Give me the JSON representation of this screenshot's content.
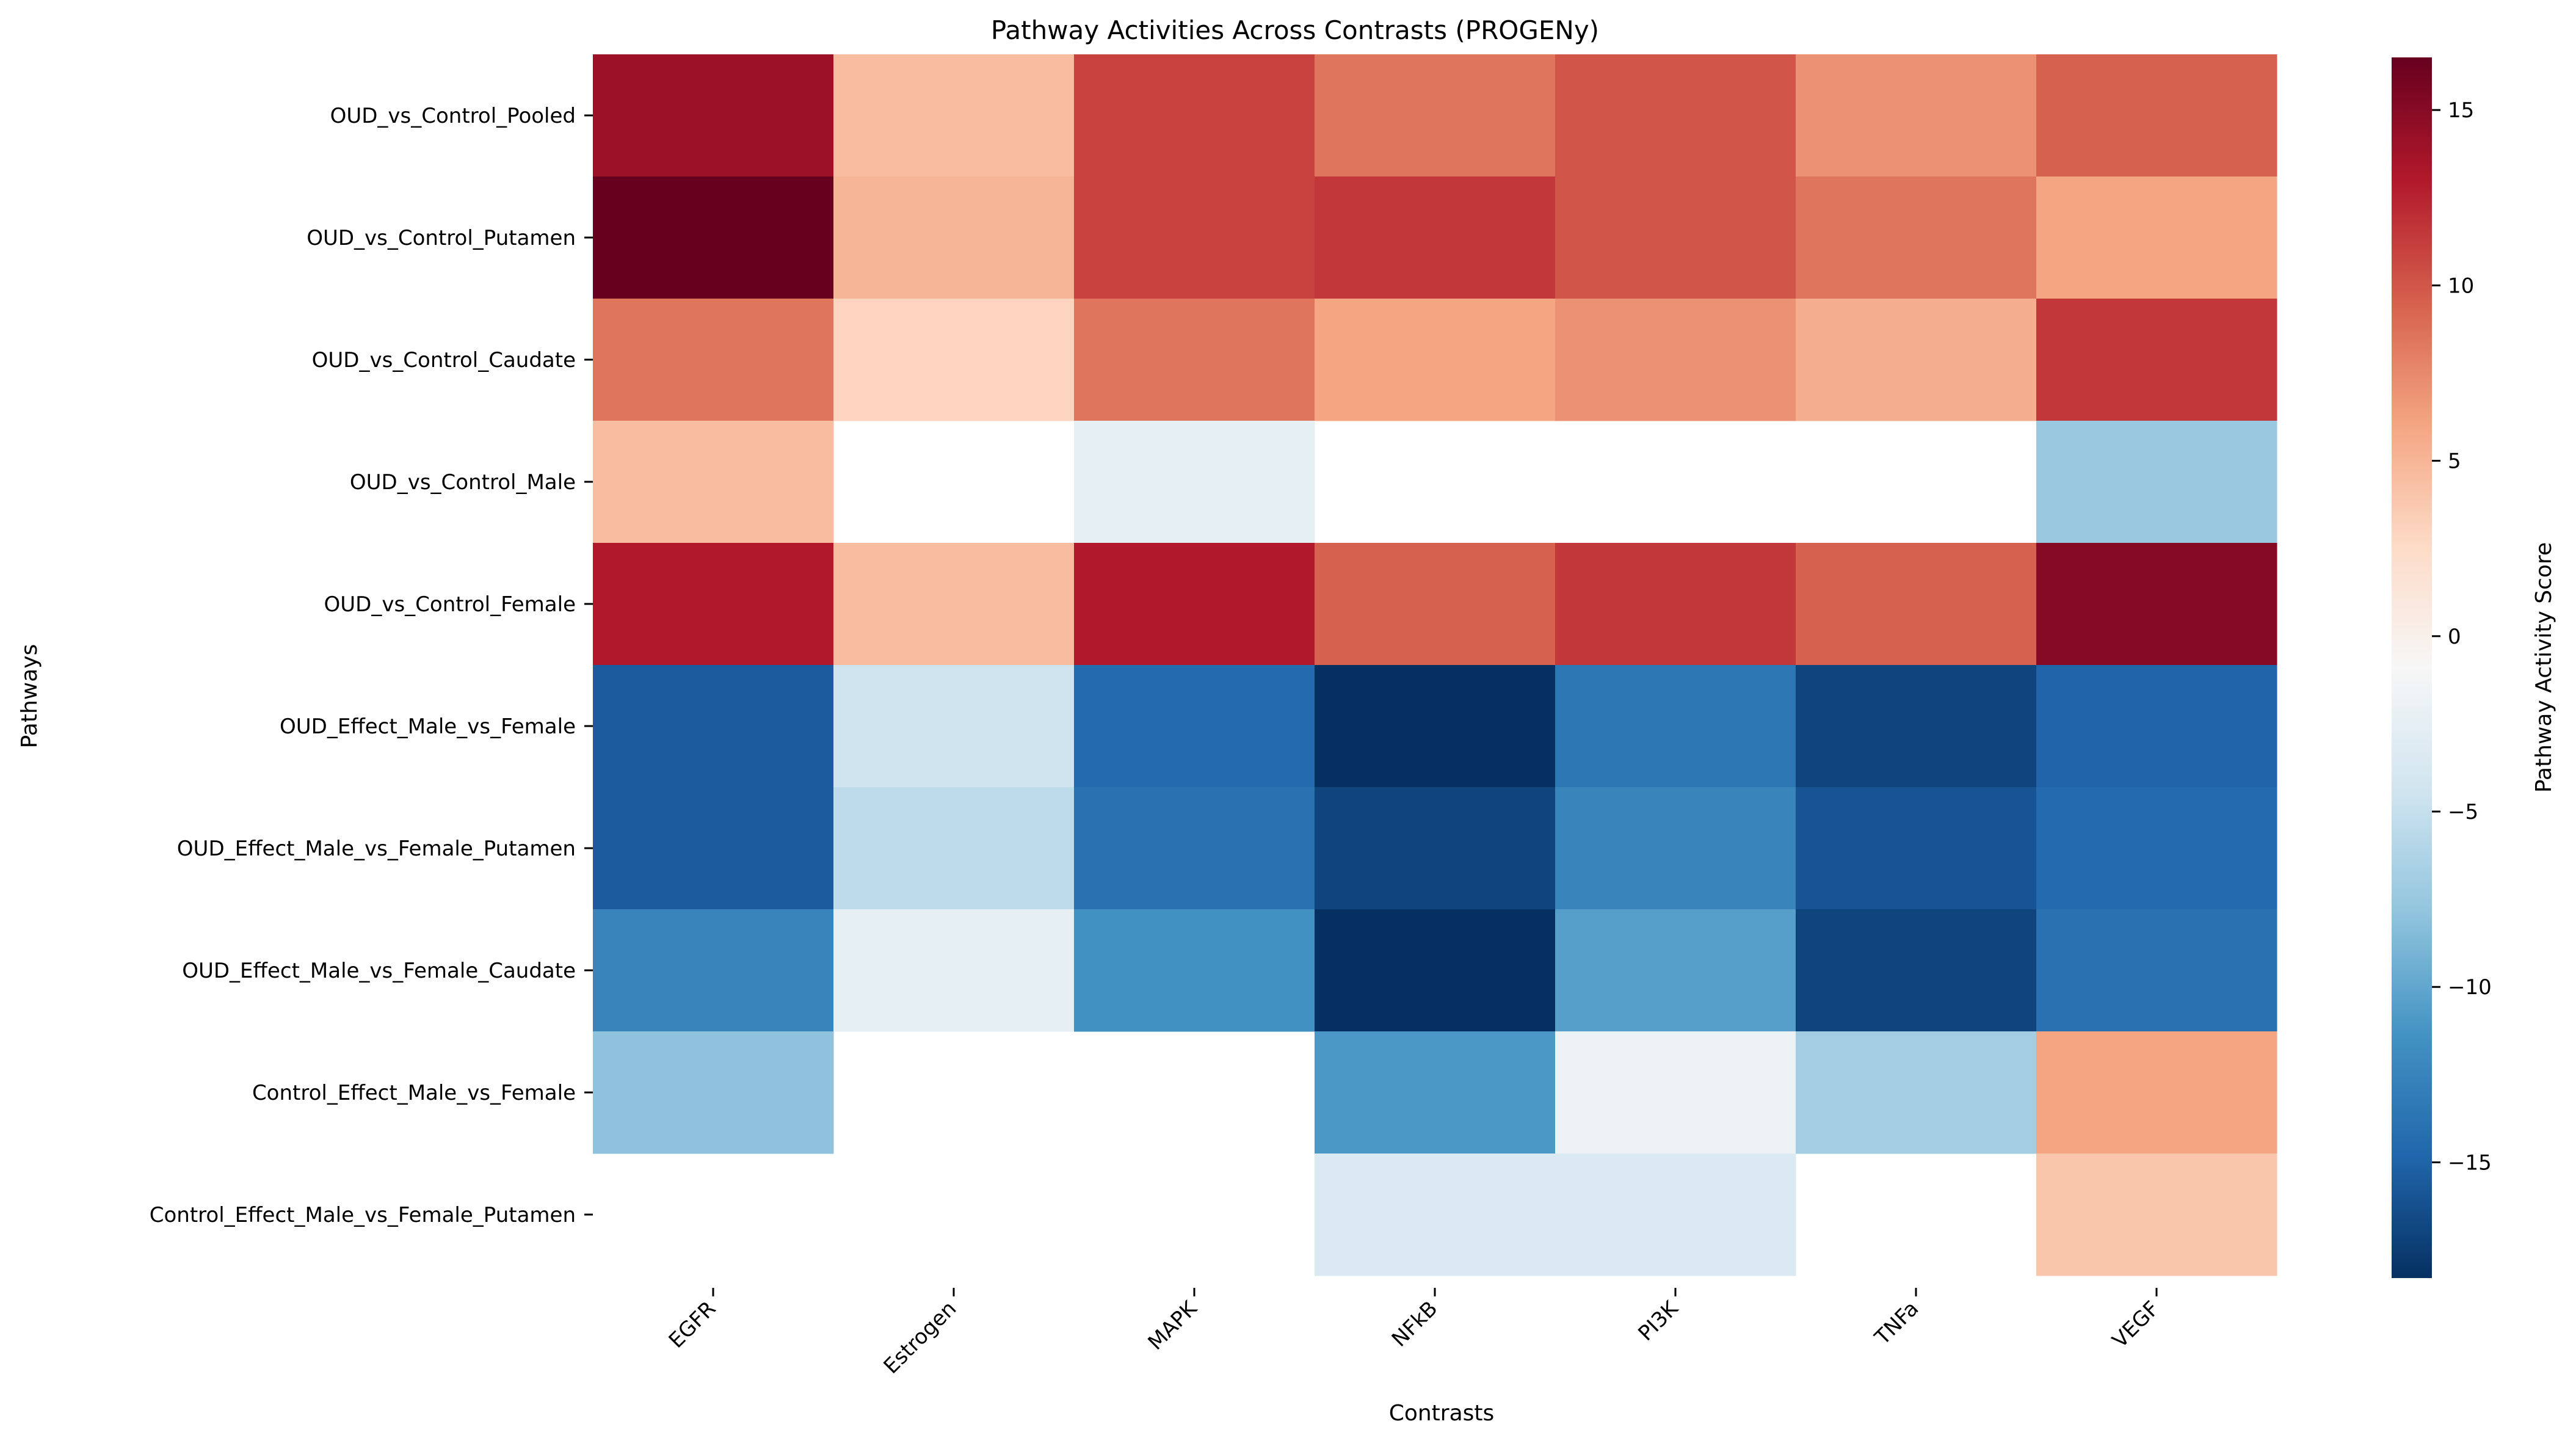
{
  "chart_data": {
    "type": "heatmap",
    "title": "Pathway Activities Across Contrasts (PROGENy)",
    "xlabel": "Contrasts",
    "ylabel": "Pathways",
    "colorbar_label": "Pathway Activity Score",
    "colormap": "RdBu_r",
    "vmin": -18.3,
    "vmax": 16.5,
    "colorbar_ticks": [
      15,
      10,
      5,
      0,
      -5,
      -10,
      -15
    ],
    "columns": [
      "EGFR",
      "Estrogen",
      "MAPK",
      "NFkB",
      "PI3K",
      "TNFa",
      "VEGF"
    ],
    "rows": [
      "OUD_vs_Control_Pooled",
      "OUD_vs_Control_Putamen",
      "OUD_vs_Control_Caudate",
      "OUD_vs_Control_Male",
      "OUD_vs_Control_Female",
      "OUD_Effect_Male_vs_Female",
      "OUD_Effect_Male_vs_Female_Putamen",
      "OUD_Effect_Male_vs_Female_Caudate",
      "Control_Effect_Male_vs_Female",
      "Control_Effect_Male_vs_Female_Putamen"
    ],
    "values": [
      [
        14.0,
        4.5,
        11.0,
        8.5,
        10.0,
        7.0,
        9.5
      ],
      [
        16.5,
        5.0,
        11.0,
        11.5,
        10.0,
        8.5,
        6.0
      ],
      [
        8.5,
        3.0,
        8.5,
        6.0,
        7.0,
        5.5,
        11.5
      ],
      [
        4.5,
        null,
        -2.5,
        null,
        null,
        null,
        -7.5
      ],
      [
        13.0,
        4.5,
        13.0,
        9.5,
        11.5,
        9.5,
        15.0
      ],
      [
        -15.5,
        -4.5,
        -14.5,
        -18.3,
        -13.5,
        -17.0,
        -15.0
      ],
      [
        -15.5,
        -5.5,
        -14.0,
        -17.0,
        -12.5,
        -16.0,
        -14.5
      ],
      [
        -12.5,
        -2.5,
        -11.5,
        -18.3,
        -10.5,
        -17.0,
        -14.0
      ],
      [
        -8.0,
        null,
        null,
        -11.0,
        -2.0,
        -7.0,
        6.0
      ],
      [
        null,
        null,
        null,
        -3.5,
        -3.5,
        null,
        4.0
      ]
    ]
  }
}
